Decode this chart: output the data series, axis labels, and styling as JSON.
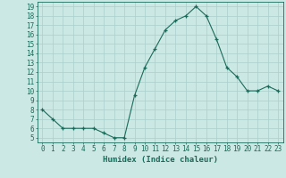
{
  "x": [
    0,
    1,
    2,
    3,
    4,
    5,
    6,
    7,
    8,
    9,
    10,
    11,
    12,
    13,
    14,
    15,
    16,
    17,
    18,
    19,
    20,
    21,
    22,
    23
  ],
  "y": [
    8,
    7,
    6,
    6,
    6,
    6,
    5.5,
    5,
    5,
    9.5,
    12.5,
    14.5,
    16.5,
    17.5,
    18,
    19,
    18,
    15.5,
    12.5,
    11.5,
    10,
    10,
    10.5,
    10
  ],
  "line_color": "#1a6b5a",
  "marker_color": "#1a6b5a",
  "bg_color": "#cce8e4",
  "grid_color": "#aacfcb",
  "xlabel": "Humidex (Indice chaleur)",
  "xlim": [
    -0.5,
    23.5
  ],
  "ylim": [
    4.5,
    19.5
  ],
  "yticks": [
    5,
    6,
    7,
    8,
    9,
    10,
    11,
    12,
    13,
    14,
    15,
    16,
    17,
    18,
    19
  ],
  "xticks": [
    0,
    1,
    2,
    3,
    4,
    5,
    6,
    7,
    8,
    9,
    10,
    11,
    12,
    13,
    14,
    15,
    16,
    17,
    18,
    19,
    20,
    21,
    22,
    23
  ],
  "tick_color": "#1a6b5a",
  "font_color": "#1a6b5a",
  "label_fontsize": 6.5,
  "tick_fontsize": 5.5
}
